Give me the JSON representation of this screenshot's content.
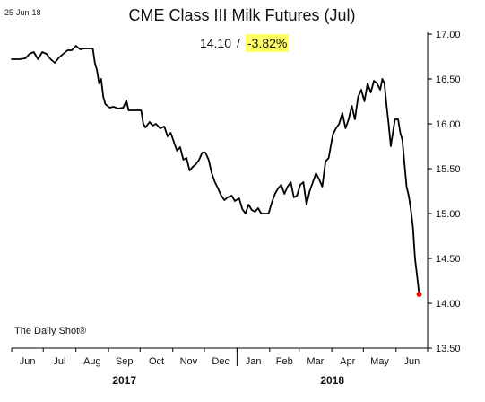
{
  "header": {
    "date": "25-Jun-18",
    "title": "CME Class III Milk Futures (Jul)"
  },
  "annotation": {
    "price": "14.10",
    "separator": "/",
    "change": "-3.82%",
    "highlight_color": "#ffff66"
  },
  "source": {
    "label": "The Daily Shot®"
  },
  "colors": {
    "line": "#000000",
    "end_marker": "#ff0000",
    "axis": "#000000"
  },
  "chart_data": {
    "type": "line",
    "title": "CME Class III Milk Futures (Jul)",
    "xlabel": "",
    "ylabel": "",
    "ylim": [
      13.5,
      17.0
    ],
    "y_ticks": [
      13.5,
      14.0,
      14.5,
      15.0,
      15.5,
      16.0,
      16.5,
      17.0
    ],
    "y_tick_labels": [
      "13.50",
      "14.00",
      "14.50",
      "15.00",
      "15.50",
      "16.00",
      "16.50",
      "17.00"
    ],
    "x_axis": {
      "unit": "month",
      "range": [
        "2017-06-01",
        "2018-07-01"
      ],
      "months": [
        {
          "label": "Jun",
          "month": "2017-06"
        },
        {
          "label": "Jul",
          "month": "2017-07"
        },
        {
          "label": "Aug",
          "month": "2017-08"
        },
        {
          "label": "Sep",
          "month": "2017-09"
        },
        {
          "label": "Oct",
          "month": "2017-10"
        },
        {
          "label": "Nov",
          "month": "2017-11"
        },
        {
          "label": "Dec",
          "month": "2017-12"
        },
        {
          "label": "Jan",
          "month": "2018-01"
        },
        {
          "label": "Feb",
          "month": "2018-02"
        },
        {
          "label": "Mar",
          "month": "2018-03"
        },
        {
          "label": "Apr",
          "month": "2018-04"
        },
        {
          "label": "May",
          "month": "2018-05"
        },
        {
          "label": "Jun",
          "month": "2018-06"
        }
      ],
      "years": [
        {
          "label": "2017",
          "months": [
            "2017-06",
            "2017-12"
          ]
        },
        {
          "label": "2018",
          "months": [
            "2018-01",
            "2018-06"
          ]
        }
      ],
      "year_divider": "2018-01-01"
    },
    "grid": false,
    "series": [
      {
        "color": "#000000",
        "points": [
          [
            "2017-06-01",
            16.72
          ],
          [
            "2017-06-08",
            16.72
          ],
          [
            "2017-06-14",
            16.73
          ],
          [
            "2017-06-18",
            16.78
          ],
          [
            "2017-06-22",
            16.8
          ],
          [
            "2017-06-26",
            16.72
          ],
          [
            "2017-06-30",
            16.8
          ],
          [
            "2017-07-04",
            16.78
          ],
          [
            "2017-07-08",
            16.72
          ],
          [
            "2017-07-12",
            16.68
          ],
          [
            "2017-07-16",
            16.74
          ],
          [
            "2017-07-20",
            16.78
          ],
          [
            "2017-07-24",
            16.82
          ],
          [
            "2017-07-28",
            16.82
          ],
          [
            "2017-08-01",
            16.87
          ],
          [
            "2017-08-05",
            16.83
          ],
          [
            "2017-08-09",
            16.84
          ],
          [
            "2017-08-13",
            16.84
          ],
          [
            "2017-08-17",
            16.84
          ],
          [
            "2017-08-19",
            16.68
          ],
          [
            "2017-08-21",
            16.6
          ],
          [
            "2017-08-23",
            16.45
          ],
          [
            "2017-08-25",
            16.5
          ],
          [
            "2017-08-27",
            16.3
          ],
          [
            "2017-08-29",
            16.22
          ],
          [
            "2017-09-02",
            16.18
          ],
          [
            "2017-09-06",
            16.19
          ],
          [
            "2017-09-10",
            16.17
          ],
          [
            "2017-09-15",
            16.18
          ],
          [
            "2017-09-18",
            16.26
          ],
          [
            "2017-09-20",
            16.15
          ],
          [
            "2017-09-27",
            16.15
          ],
          [
            "2017-10-02",
            16.15
          ],
          [
            "2017-10-04",
            16.0
          ],
          [
            "2017-10-06",
            15.96
          ],
          [
            "2017-10-10",
            16.02
          ],
          [
            "2017-10-13",
            15.98
          ],
          [
            "2017-10-16",
            16.0
          ],
          [
            "2017-10-20",
            15.95
          ],
          [
            "2017-10-24",
            15.97
          ],
          [
            "2017-10-27",
            15.86
          ],
          [
            "2017-10-30",
            15.9
          ],
          [
            "2017-11-02",
            15.8
          ],
          [
            "2017-11-05",
            15.7
          ],
          [
            "2017-11-08",
            15.74
          ],
          [
            "2017-11-11",
            15.6
          ],
          [
            "2017-11-14",
            15.62
          ],
          [
            "2017-11-17",
            15.48
          ],
          [
            "2017-11-20",
            15.52
          ],
          [
            "2017-11-23",
            15.55
          ],
          [
            "2017-11-26",
            15.6
          ],
          [
            "2017-11-29",
            15.68
          ],
          [
            "2017-12-02",
            15.68
          ],
          [
            "2017-12-05",
            15.6
          ],
          [
            "2017-12-08",
            15.45
          ],
          [
            "2017-12-11",
            15.35
          ],
          [
            "2017-12-14",
            15.28
          ],
          [
            "2017-12-17",
            15.2
          ],
          [
            "2017-12-20",
            15.15
          ],
          [
            "2017-12-23",
            15.18
          ],
          [
            "2017-12-27",
            15.2
          ],
          [
            "2017-12-30",
            15.14
          ],
          [
            "2018-01-03",
            15.17
          ],
          [
            "2018-01-06",
            15.05
          ],
          [
            "2018-01-09",
            15.0
          ],
          [
            "2018-01-12",
            15.1
          ],
          [
            "2018-01-15",
            15.04
          ],
          [
            "2018-01-18",
            15.02
          ],
          [
            "2018-01-21",
            15.06
          ],
          [
            "2018-01-24",
            15.0
          ],
          [
            "2018-01-28",
            15.0
          ],
          [
            "2018-01-31",
            15.0
          ],
          [
            "2018-02-03",
            15.12
          ],
          [
            "2018-02-06",
            15.22
          ],
          [
            "2018-02-09",
            15.28
          ],
          [
            "2018-02-12",
            15.32
          ],
          [
            "2018-02-15",
            15.22
          ],
          [
            "2018-02-18",
            15.3
          ],
          [
            "2018-02-21",
            15.35
          ],
          [
            "2018-02-24",
            15.18
          ],
          [
            "2018-02-27",
            15.2
          ],
          [
            "2018-03-02",
            15.32
          ],
          [
            "2018-03-05",
            15.35
          ],
          [
            "2018-03-08",
            15.1
          ],
          [
            "2018-03-11",
            15.25
          ],
          [
            "2018-03-14",
            15.35
          ],
          [
            "2018-03-17",
            15.45
          ],
          [
            "2018-03-20",
            15.38
          ],
          [
            "2018-03-23",
            15.3
          ],
          [
            "2018-03-26",
            15.58
          ],
          [
            "2018-03-29",
            15.62
          ],
          [
            "2018-04-02",
            15.88
          ],
          [
            "2018-04-05",
            15.95
          ],
          [
            "2018-04-08",
            16.0
          ],
          [
            "2018-04-11",
            16.12
          ],
          [
            "2018-04-14",
            15.95
          ],
          [
            "2018-04-17",
            16.05
          ],
          [
            "2018-04-20",
            16.2
          ],
          [
            "2018-04-23",
            16.05
          ],
          [
            "2018-04-26",
            16.3
          ],
          [
            "2018-04-29",
            16.38
          ],
          [
            "2018-05-02",
            16.25
          ],
          [
            "2018-05-05",
            16.45
          ],
          [
            "2018-05-08",
            16.35
          ],
          [
            "2018-05-11",
            16.48
          ],
          [
            "2018-05-14",
            16.45
          ],
          [
            "2018-05-17",
            16.38
          ],
          [
            "2018-05-19",
            16.5
          ],
          [
            "2018-05-21",
            16.45
          ],
          [
            "2018-05-23",
            16.2
          ],
          [
            "2018-05-25",
            16.0
          ],
          [
            "2018-05-27",
            15.75
          ],
          [
            "2018-05-29",
            15.9
          ],
          [
            "2018-05-31",
            16.05
          ],
          [
            "2018-06-03",
            16.05
          ],
          [
            "2018-06-05",
            15.9
          ],
          [
            "2018-06-07",
            15.82
          ],
          [
            "2018-06-09",
            15.55
          ],
          [
            "2018-06-11",
            15.3
          ],
          [
            "2018-06-13",
            15.2
          ],
          [
            "2018-06-15",
            15.05
          ],
          [
            "2018-06-17",
            14.85
          ],
          [
            "2018-06-19",
            14.5
          ],
          [
            "2018-06-21",
            14.3
          ],
          [
            "2018-06-23",
            14.1
          ]
        ]
      }
    ],
    "end_point": [
      "2018-06-23",
      14.1
    ]
  }
}
